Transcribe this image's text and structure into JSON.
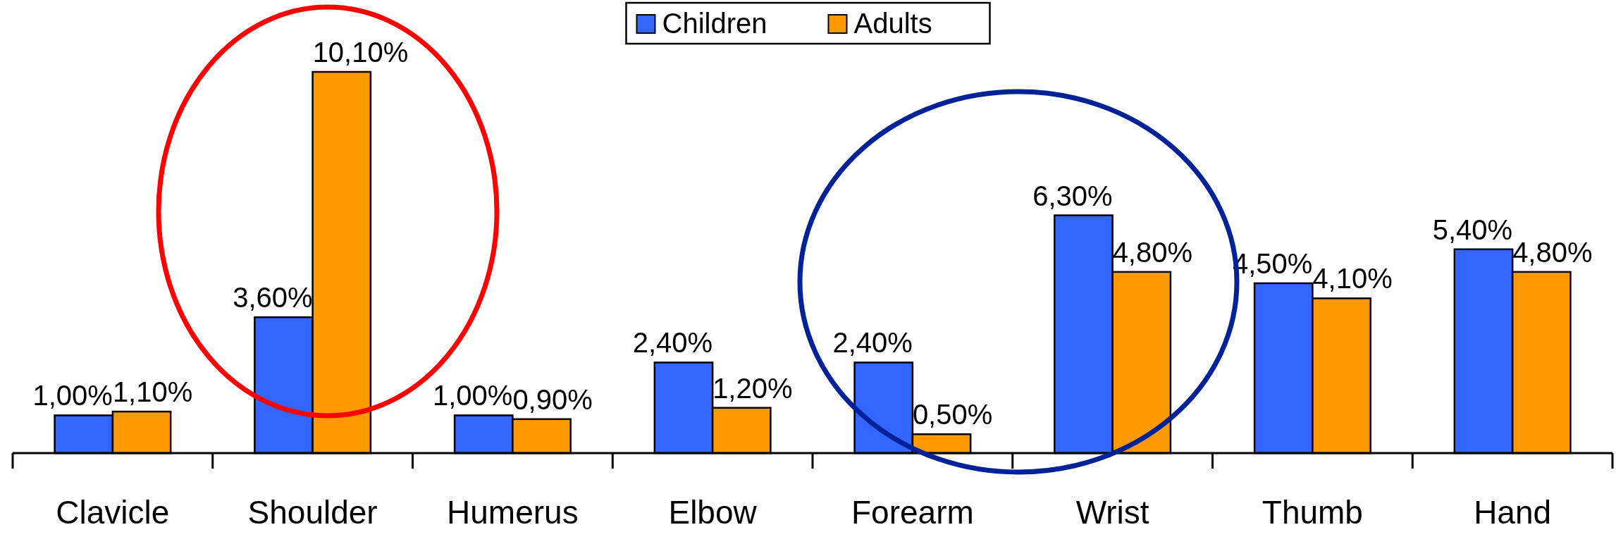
{
  "chart_data": {
    "type": "bar",
    "categories": [
      "Clavicle",
      "Shoulder",
      "Humerus",
      "Elbow",
      "Forearm",
      "Wrist",
      "Thumb",
      "Hand"
    ],
    "series": [
      {
        "name": "Children",
        "color": "#3366ff",
        "values": [
          1.0,
          3.6,
          1.0,
          2.4,
          2.4,
          6.3,
          4.5,
          5.4
        ],
        "value_labels": [
          "1,00%",
          "3,60%",
          "1,00%",
          "2,40%",
          "2,40%",
          "6,30%",
          "4,50%",
          "5,40%"
        ]
      },
      {
        "name": "Adults",
        "color": "#ff9900",
        "values": [
          1.1,
          10.1,
          0.9,
          1.2,
          0.5,
          4.8,
          4.1,
          4.8
        ],
        "value_labels": [
          "1,10%",
          "10,10%",
          "0,90%",
          "1,20%",
          "0,50%",
          "4,80%",
          "4,10%",
          "4,80%"
        ]
      }
    ],
    "legend": "top"
  }
}
